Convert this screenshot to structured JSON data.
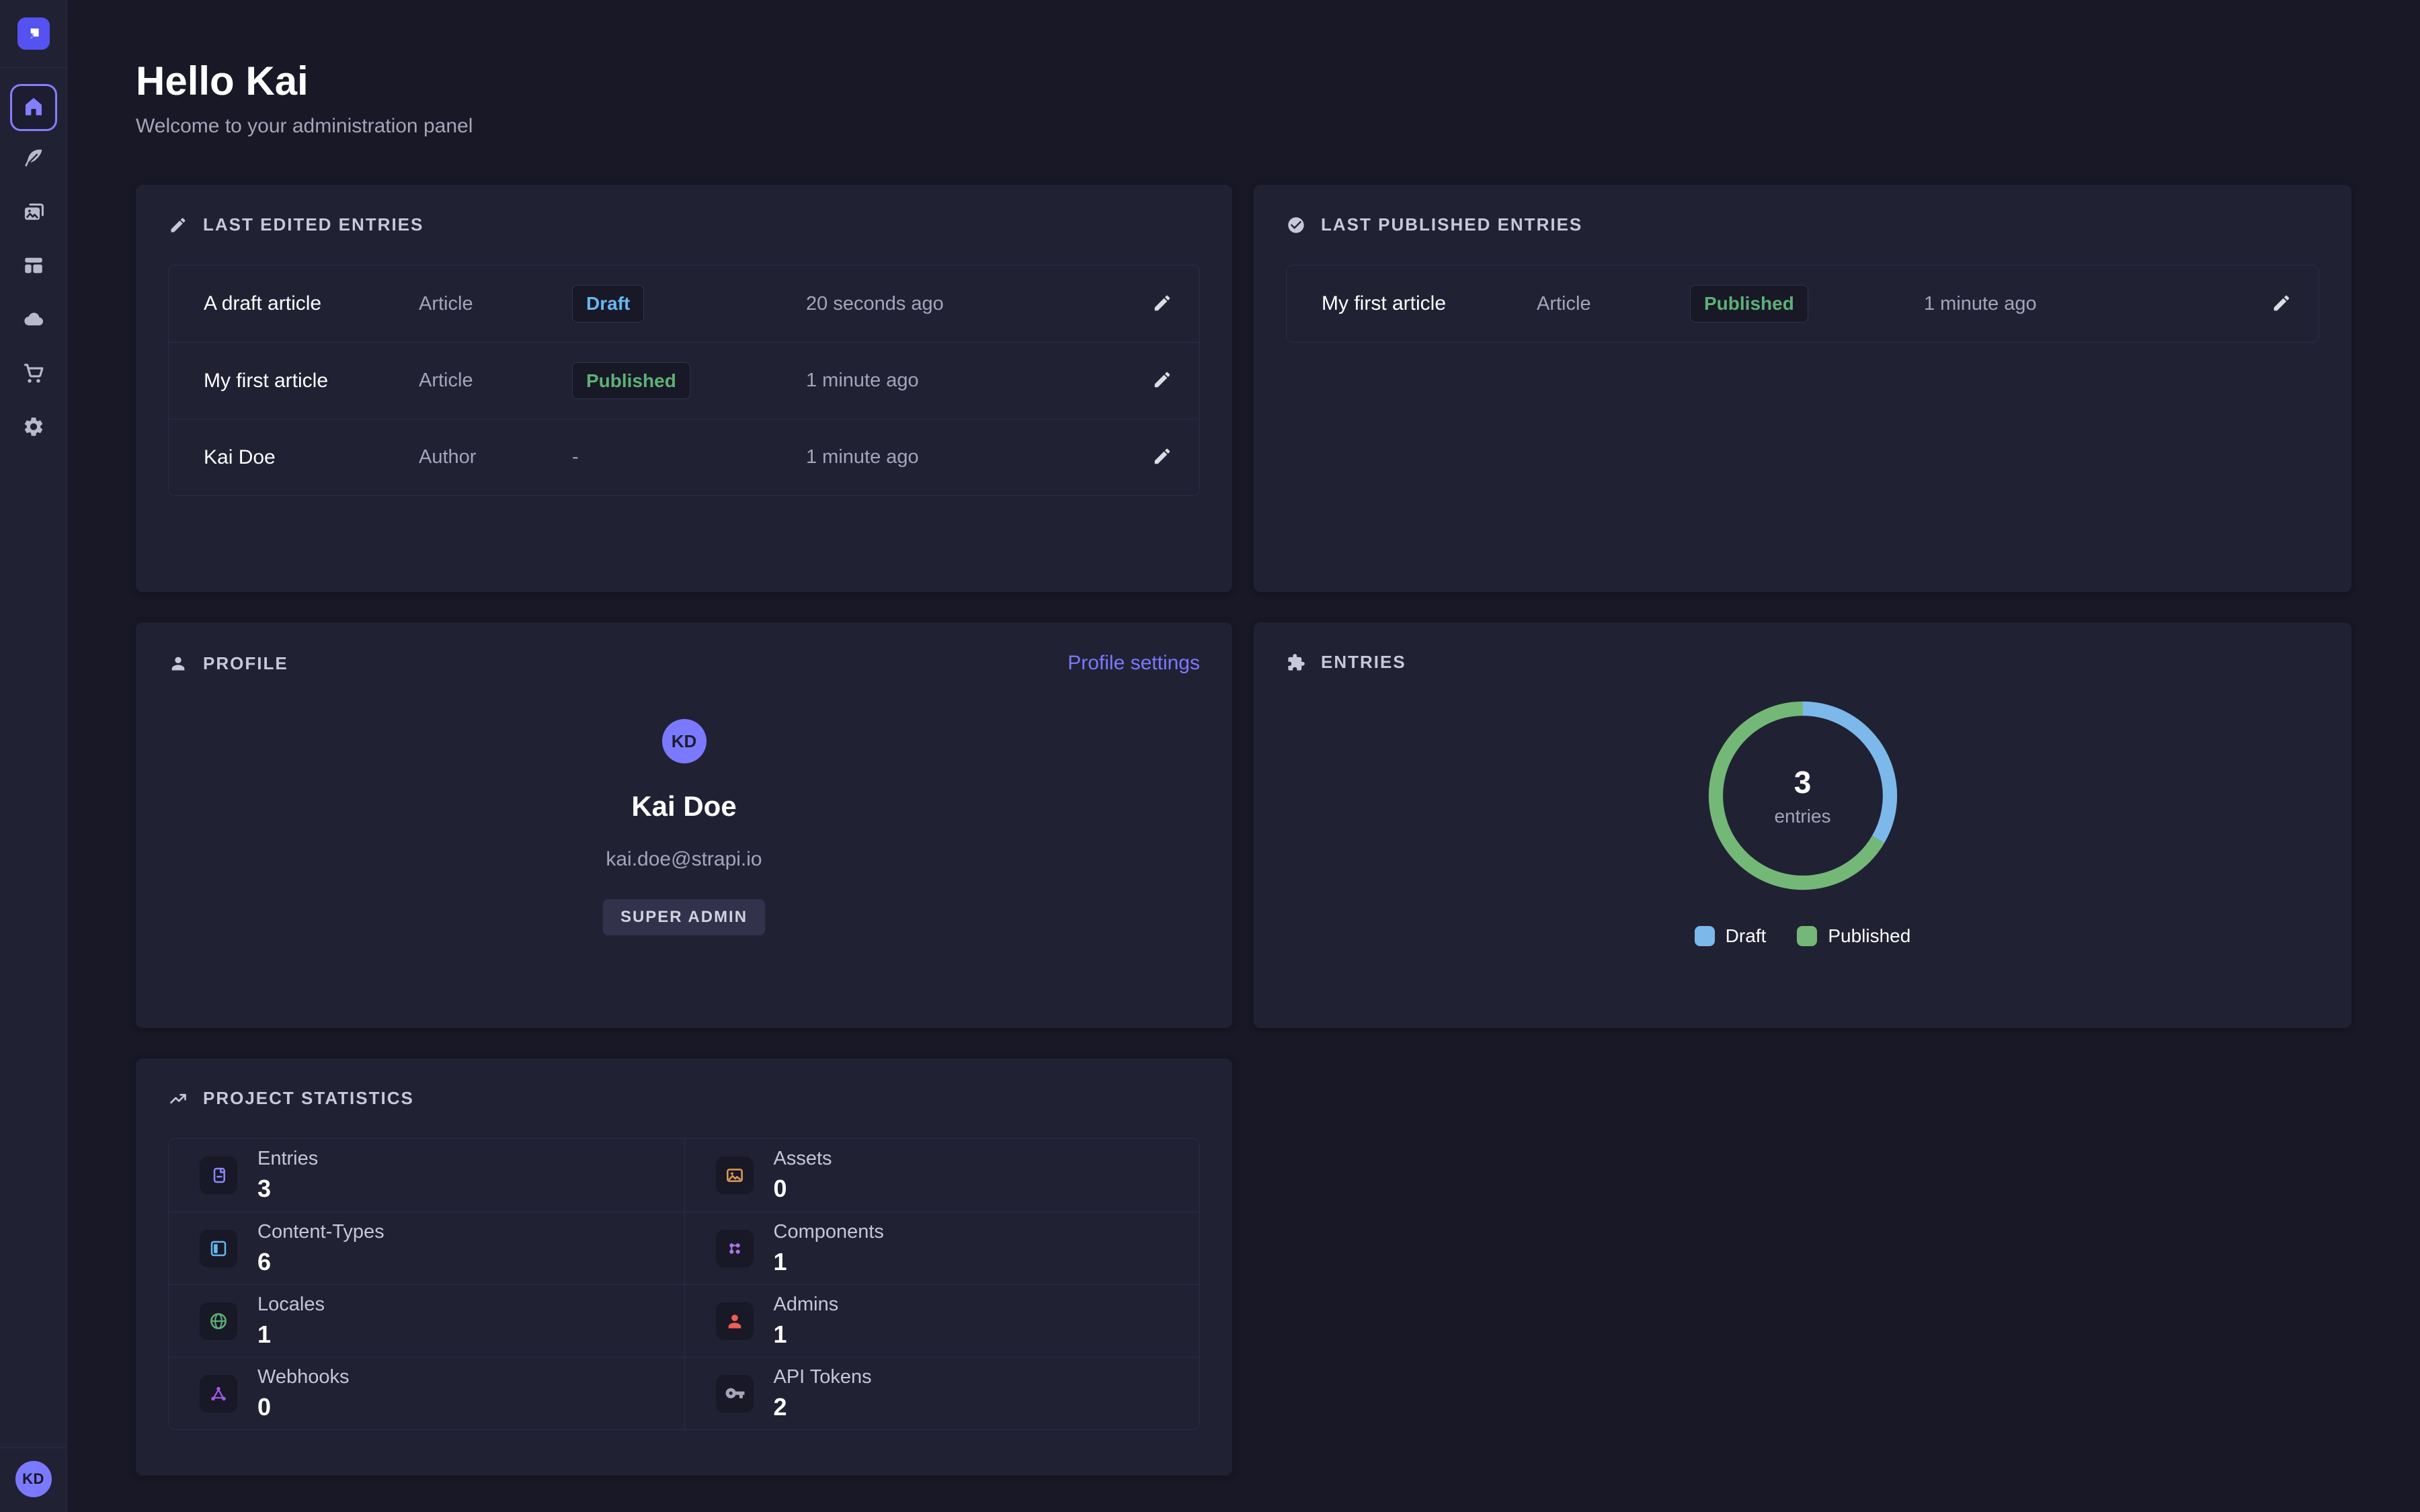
{
  "colors": {
    "page_bg": "#181826",
    "card_bg": "#212134",
    "border": "#2b2b44",
    "accent_purple": "#7b79ff",
    "logo_purple": "#5452f0",
    "draft_text": "#66b7f1",
    "published_text": "#5cb176",
    "secondary_text": "#a5a5ba"
  },
  "sidebar": {
    "logo_icon": "strapi-logo",
    "nav_icons": [
      "home",
      "content-manager-feather",
      "media-library-images",
      "content-type-builder-layout",
      "deploy-cloud",
      "marketplace-cart",
      "settings-gear"
    ],
    "active_item": "home",
    "user_initials": "KD"
  },
  "page": {
    "title": "Hello Kai",
    "subtitle": "Welcome to your administration panel"
  },
  "last_edited": {
    "title": "LAST EDITED ENTRIES",
    "icon": "pencil-icon",
    "rows": [
      {
        "name": "A draft article",
        "type": "Article",
        "status": "Draft",
        "time": "20 seconds ago"
      },
      {
        "name": "My first article",
        "type": "Article",
        "status": "Published",
        "time": "1 minute ago"
      },
      {
        "name": "Kai Doe",
        "type": "Author",
        "status": "-",
        "time": "1 minute ago"
      }
    ]
  },
  "last_published": {
    "title": "LAST PUBLISHED ENTRIES",
    "icon": "check-circle-icon",
    "rows": [
      {
        "name": "My first article",
        "type": "Article",
        "status": "Published",
        "time": "1 minute ago"
      }
    ]
  },
  "profile": {
    "title": "PROFILE",
    "icon": "user-icon",
    "settings_link": "Profile settings",
    "initials": "KD",
    "name": "Kai Doe",
    "email": "kai.doe@strapi.io",
    "role_badge": "SUPER ADMIN"
  },
  "entries_widget": {
    "title": "ENTRIES",
    "icon": "puzzle-icon",
    "center_value": "3",
    "center_label": "entries",
    "chart_data": {
      "type": "pie",
      "labels": [
        "Draft",
        "Published"
      ],
      "values": [
        1,
        2
      ],
      "colors": [
        "#7CB9EA",
        "#74B877"
      ],
      "total": 3,
      "legend_position": "bottom"
    }
  },
  "stats": {
    "title": "PROJECT STATISTICS",
    "icon": "trend-up-icon",
    "items": [
      {
        "label": "Entries",
        "value": "3",
        "icon": "entries-doc-icon",
        "color": "#8a88ff"
      },
      {
        "label": "Assets",
        "value": "0",
        "icon": "assets-image-icon",
        "color": "#de9b52"
      },
      {
        "label": "Content-Types",
        "value": "6",
        "icon": "content-types-layout-icon",
        "color": "#66b7f1"
      },
      {
        "label": "Components",
        "value": "1",
        "icon": "components-puzzle-icon",
        "color": "#ac73e6"
      },
      {
        "label": "Locales",
        "value": "1",
        "icon": "locales-globe-icon",
        "color": "#5cb176"
      },
      {
        "label": "Admins",
        "value": "1",
        "icon": "admins-user-icon",
        "color": "#ee5e52"
      },
      {
        "label": "Webhooks",
        "value": "0",
        "icon": "webhooks-nodes-icon",
        "color": "#9b59e8"
      },
      {
        "label": "API Tokens",
        "value": "2",
        "icon": "api-tokens-key-icon",
        "color": "#a5a5ba"
      }
    ]
  }
}
